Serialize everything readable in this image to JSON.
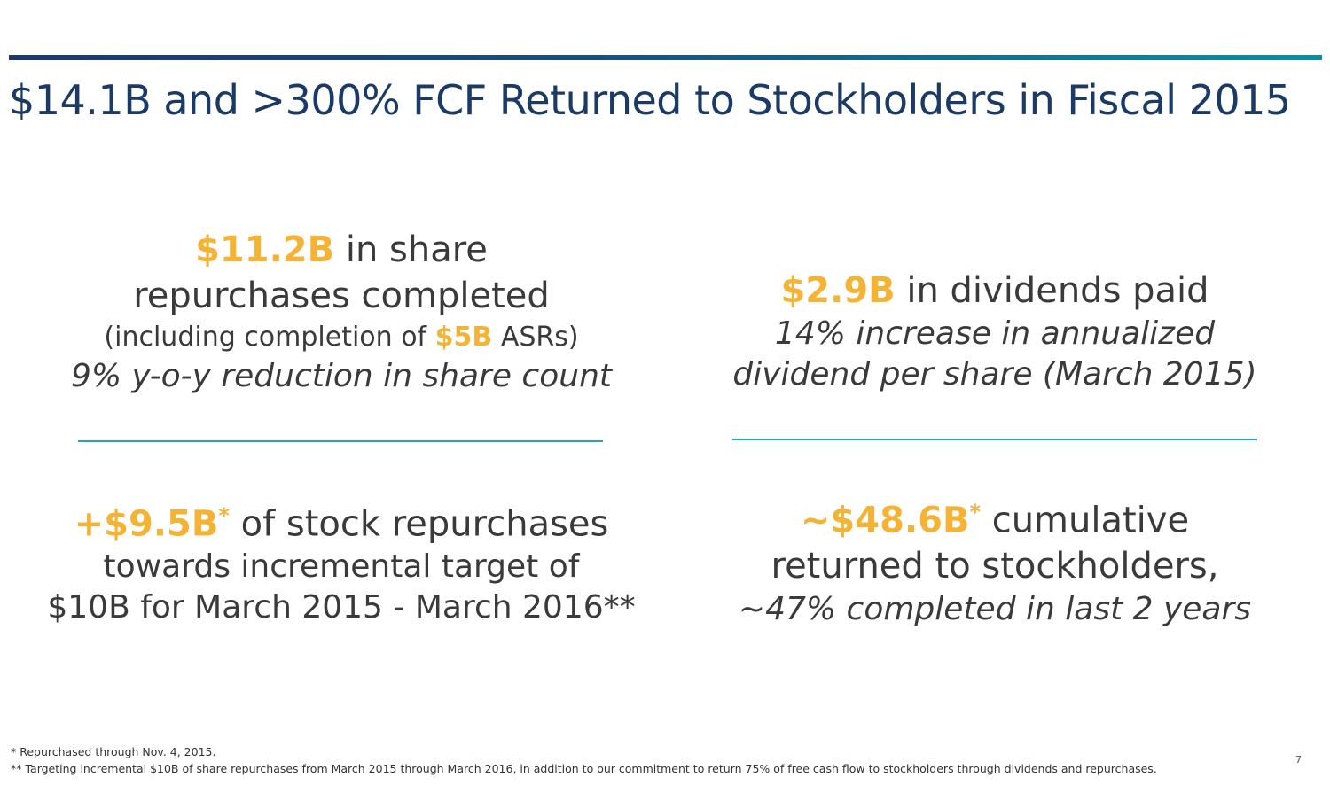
{
  "title": "$14.1B and >300% FCF Returned to Stockholders in Fiscal 2015",
  "blocks": {
    "repurchases": {
      "amount": "$11.2B",
      "line1_rest": " in share",
      "line2": "repurchases completed",
      "line3_pre": "(including completion of ",
      "line3_amount": "$5B",
      "line3_post": " ASRs)",
      "line4": "9% y-o-y reduction in share count"
    },
    "dividends": {
      "amount": "$2.9B",
      "line1_rest": " in dividends paid",
      "line2": "14% increase in annualized",
      "line3": "dividend per share (March 2015)"
    },
    "incremental": {
      "amount": "+$9.5B",
      "marker": "*",
      "line1_rest": " of stock repurchases",
      "line2": "towards incremental target of",
      "line3": "$10B for March 2015 - March 2016**"
    },
    "cumulative": {
      "amount": "~$48.6B",
      "marker": "*",
      "line1_rest": " cumulative",
      "line2": "returned to stockholders,",
      "line3": "~47% completed in last 2 years"
    }
  },
  "footnotes": {
    "note1": "*  Repurchased through Nov. 4, 2015.",
    "note2": "** Targeting incremental $10B of share repurchases from March 2015 through March 2016, in addition to our commitment to return 75% of free cash flow to stockholders through dividends and repurchases."
  },
  "page_number": "7",
  "colors": {
    "title": "#1b3a66",
    "highlight": "#f5b335",
    "divider": "#29a3c4",
    "body_text": "#3a3a3a"
  }
}
